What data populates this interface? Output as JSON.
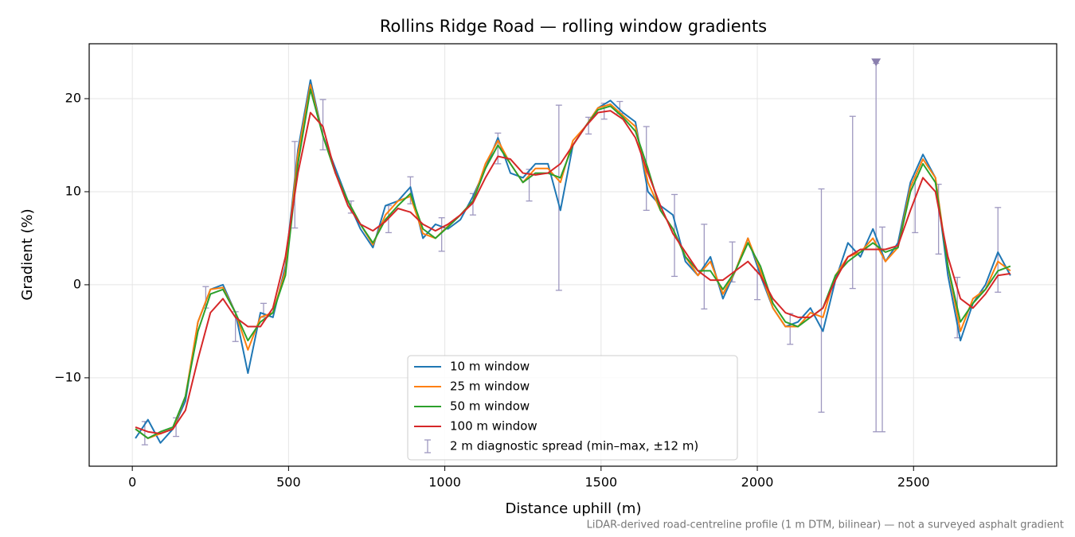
{
  "chart_data": {
    "type": "line",
    "title": "Rollins Ridge Road — rolling window gradients",
    "x_label": "Distance uphill (m)",
    "y_label": "Gradient (%)",
    "footnote": "LiDAR-derived road-centreline profile (1 m DTM, bilinear) — not a surveyed asphalt gradient",
    "xlim": [
      -138,
      2958
    ],
    "ylim": [
      -19.5,
      25.9
    ],
    "xticks": [
      0,
      500,
      1000,
      1500,
      2000,
      2500
    ],
    "yticks": [
      {
        "value": -10,
        "label": "−10"
      },
      0,
      10,
      20
    ],
    "grid": true,
    "legend": "lower center",
    "x": [
      10,
      50,
      90,
      130,
      170,
      210,
      250,
      290,
      330,
      370,
      410,
      450,
      490,
      530,
      570,
      610,
      650,
      690,
      730,
      770,
      810,
      850,
      890,
      930,
      970,
      1010,
      1050,
      1090,
      1130,
      1170,
      1210,
      1250,
      1290,
      1330,
      1370,
      1410,
      1450,
      1490,
      1530,
      1570,
      1610,
      1650,
      1690,
      1730,
      1770,
      1810,
      1850,
      1890,
      1930,
      1970,
      2010,
      2050,
      2090,
      2130,
      2170,
      2210,
      2250,
      2290,
      2330,
      2370,
      2410,
      2450,
      2490,
      2530,
      2570,
      2610,
      2650,
      2690,
      2730,
      2770,
      2810
    ],
    "series": [
      {
        "name": "10 m window",
        "color": "#1f77b4",
        "values": [
          -16.5,
          -14.5,
          -17,
          -15.5,
          -12.5,
          -4,
          -0.5,
          0,
          -3,
          -9.5,
          -3,
          -3.5,
          2,
          14.5,
          22,
          16,
          12.5,
          9,
          6,
          4,
          8.5,
          9,
          10.5,
          5,
          6.5,
          6,
          7,
          9.5,
          12.5,
          15.8,
          12,
          11.5,
          13,
          13,
          8,
          15,
          17,
          19,
          19.8,
          18.5,
          17.5,
          10,
          8.5,
          7.5,
          2.5,
          1,
          3,
          -1.5,
          1.5,
          5,
          1,
          -2.5,
          -4.5,
          -4,
          -2.5,
          -5,
          0.5,
          4.5,
          3,
          6,
          2.5,
          4.5,
          11,
          14,
          11.5,
          1,
          -6,
          -2,
          0,
          3.5,
          1
        ]
      },
      {
        "name": "25 m window",
        "color": "#ff7f0e",
        "values": [
          -15.5,
          -16.5,
          -16,
          -15.5,
          -12,
          -4,
          -0.5,
          -0.3,
          -3,
          -7,
          -3.5,
          -3,
          1.5,
          14,
          21.5,
          16,
          12,
          9,
          6.5,
          4.3,
          7.5,
          9,
          9.5,
          5.5,
          5,
          6.3,
          7.5,
          9,
          13,
          15.5,
          13,
          11,
          12.5,
          12.5,
          11,
          15.5,
          17,
          19,
          19.4,
          18.2,
          17,
          11,
          8,
          6,
          3,
          1,
          2.5,
          -1,
          1.5,
          5,
          1.5,
          -2.5,
          -4.5,
          -4.5,
          -3,
          -3.5,
          1,
          3,
          3.5,
          5,
          2.5,
          4,
          10.5,
          13.5,
          11.5,
          2,
          -5,
          -1.5,
          -0.5,
          2.5,
          1.5
        ]
      },
      {
        "name": "50 m window",
        "color": "#2ca02c",
        "values": [
          -15.5,
          -16.5,
          -15.8,
          -15.3,
          -12,
          -5,
          -1,
          -0.5,
          -3,
          -6,
          -4,
          -3,
          1,
          13,
          21,
          16,
          12,
          9,
          6.5,
          4.5,
          7,
          8.5,
          9.8,
          6,
          5,
          6.2,
          7.5,
          9,
          12.5,
          15,
          13,
          11,
          12,
          12,
          11.5,
          15,
          17,
          18.8,
          19.2,
          18,
          16.5,
          12.5,
          8,
          6,
          3,
          1.5,
          1.5,
          -0.5,
          1.5,
          4.5,
          2,
          -2,
          -4,
          -4.5,
          -3.5,
          -2.5,
          1,
          2.5,
          3.5,
          4.5,
          3.5,
          4,
          10,
          13,
          11,
          2,
          -4,
          -2,
          -0.5,
          1.5,
          2
        ]
      },
      {
        "name": "100 m window",
        "color": "#d62728",
        "values": [
          -15.3,
          -15.8,
          -16,
          -15.5,
          -13.5,
          -8,
          -3,
          -1.5,
          -3.5,
          -4.5,
          -4.5,
          -2.5,
          3,
          12,
          18.5,
          17,
          12,
          8.5,
          6.5,
          5.8,
          6.8,
          8.2,
          7.8,
          6.5,
          5.8,
          6.5,
          7.5,
          8.8,
          11.5,
          13.8,
          13.5,
          12,
          11.8,
          12,
          13,
          15,
          17,
          18.5,
          18.7,
          17.8,
          15.8,
          12,
          8.5,
          5.5,
          3.5,
          1.5,
          0.5,
          0.5,
          1.5,
          2.5,
          1,
          -1.5,
          -3,
          -3.5,
          -3.5,
          -2.5,
          0.5,
          3,
          3.8,
          3.8,
          3.8,
          4.2,
          8,
          11.5,
          10,
          3,
          -1.5,
          -2.5,
          -1,
          1,
          1.2
        ]
      }
    ],
    "errorbars": {
      "name": "2 m diagnostic spread (min–max, ±12 m)",
      "color": "#9e98c0",
      "x": [
        40,
        140,
        235,
        330,
        420,
        520,
        610,
        700,
        820,
        890,
        990,
        1090,
        1170,
        1270,
        1365,
        1460,
        1510,
        1560,
        1645,
        1735,
        1830,
        1920,
        2000,
        2105,
        2205,
        2305,
        2380,
        2400,
        2505,
        2580,
        2640,
        2770
      ],
      "low": [
        -17.2,
        -16.3,
        -2.5,
        -6.1,
        -3.5,
        6.1,
        14.5,
        7.7,
        5.6,
        8.7,
        3.6,
        7.5,
        13,
        9,
        -0.6,
        16.2,
        17.8,
        18.4,
        8,
        0.9,
        -2.6,
        0.3,
        -1.6,
        -6.4,
        -13.7,
        -0.4,
        -15.8,
        -15.8,
        5.6,
        3.3,
        -5.7,
        -0.8
      ],
      "high": [
        -14.7,
        -14.3,
        -0.2,
        -2.9,
        -2,
        15.4,
        19.9,
        9,
        8.5,
        11.6,
        7.2,
        9.8,
        16.3,
        12.4,
        19.3,
        18,
        19.5,
        19.7,
        17,
        9.7,
        6.5,
        4.6,
        1.6,
        -3.1,
        10.3,
        18.1,
        23.8,
        6.2,
        11.6,
        10.8,
        0.8,
        8.3
      ]
    }
  }
}
